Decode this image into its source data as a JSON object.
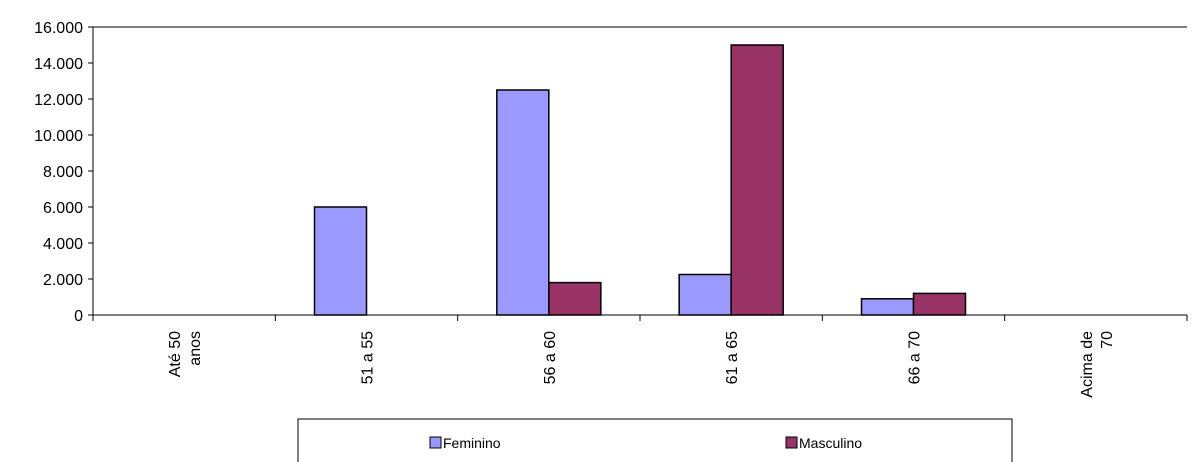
{
  "chart_data": {
    "type": "bar",
    "categories": [
      "Até 50 anos",
      "51 a 55",
      "56 a 60",
      "61 a 65",
      "66 a 70",
      "Acima de 70"
    ],
    "category_lines": [
      [
        "Até 50",
        "anos"
      ],
      [
        "51 a 55"
      ],
      [
        "56 a 60"
      ],
      [
        "61 a 65"
      ],
      [
        "66 a 70"
      ],
      [
        "Acima de",
        "70"
      ]
    ],
    "series": [
      {
        "name": "Feminino",
        "values": [
          0,
          6000,
          12500,
          2250,
          900,
          0
        ],
        "color": "#9999ff"
      },
      {
        "name": "Masculino",
        "values": [
          0,
          0,
          1800,
          15000,
          1200,
          0
        ],
        "color": "#993366"
      }
    ],
    "ylim": [
      0,
      16000
    ],
    "yticks": [
      0,
      2000,
      4000,
      6000,
      8000,
      10000,
      12000,
      14000,
      16000
    ],
    "ytick_labels": [
      "0",
      "2.000",
      "4.000",
      "6.000",
      "8.000",
      "10.000",
      "12.000",
      "14.000",
      "16.000"
    ],
    "grid": false,
    "legend_position": "bottom",
    "title": "",
    "xlabel": "",
    "ylabel": ""
  }
}
